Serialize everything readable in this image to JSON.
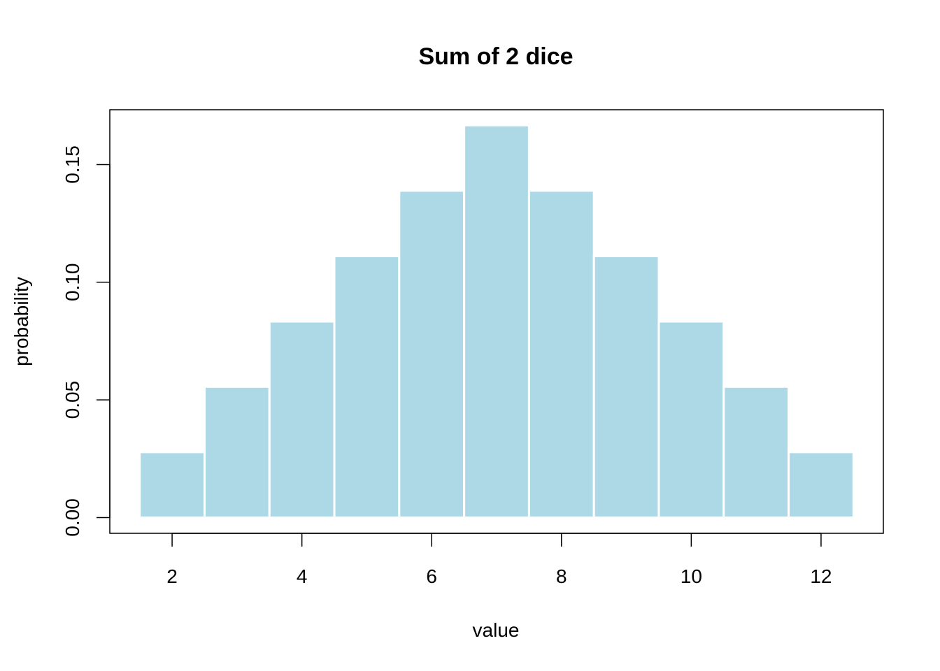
{
  "chart_data": {
    "type": "bar",
    "title": "Sum of 2 dice",
    "xlabel": "value",
    "ylabel": "probability",
    "categories": [
      2,
      3,
      4,
      5,
      6,
      7,
      8,
      9,
      10,
      11,
      12
    ],
    "values": [
      0.0278,
      0.0556,
      0.0833,
      0.1111,
      0.1389,
      0.1667,
      0.1389,
      0.1111,
      0.0833,
      0.0556,
      0.0278
    ],
    "xlim": [
      1.04,
      12.96
    ],
    "ylim": [
      -0.0067,
      0.1733
    ],
    "xticks": [
      2,
      4,
      6,
      8,
      10,
      12
    ],
    "xtick_labels": [
      "2",
      "4",
      "6",
      "8",
      "10",
      "12"
    ],
    "yticks": [
      0.0,
      0.05,
      0.1,
      0.15
    ],
    "ytick_labels": [
      "0.00",
      "0.05",
      "0.10",
      "0.15"
    ],
    "bar_color": "#ADD8E6",
    "bar_border_color": "#FFFFFF",
    "grid": false,
    "legend": "none"
  }
}
